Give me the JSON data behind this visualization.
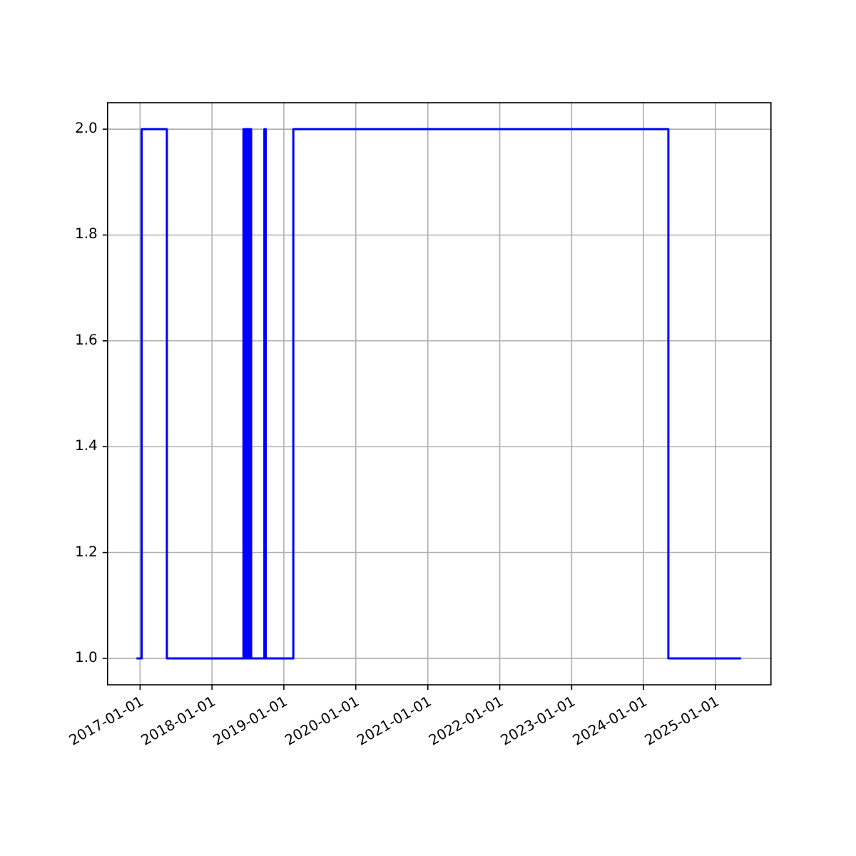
{
  "chart_data": {
    "type": "step",
    "x": [
      "2016-12-14",
      "2017-01-09",
      "2017-05-17",
      "2018-06-10",
      "2018-06-15",
      "2018-06-20",
      "2018-06-26",
      "2018-07-01",
      "2018-07-06",
      "2018-07-11",
      "2018-07-19",
      "2018-09-24",
      "2018-10-01",
      "2019-02-18",
      "2024-05-06",
      "2025-05-10"
    ],
    "series": [
      {
        "color": "#0000ff",
        "values": [
          1,
          2,
          1,
          2,
          1,
          2,
          1,
          2,
          1,
          2,
          1,
          2,
          1,
          2,
          1,
          1
        ]
      }
    ],
    "xlim": [
      "2016-07-20",
      "2025-10-09"
    ],
    "xticks": [
      {
        "value": "2017-01-01",
        "label": "2017-01-01"
      },
      {
        "value": "2018-01-01",
        "label": "2018-01-01"
      },
      {
        "value": "2019-01-01",
        "label": "2019-01-01"
      },
      {
        "value": "2020-01-01",
        "label": "2020-01-01"
      },
      {
        "value": "2021-01-01",
        "label": "2021-01-01"
      },
      {
        "value": "2022-01-01",
        "label": "2022-01-01"
      },
      {
        "value": "2023-01-01",
        "label": "2023-01-01"
      },
      {
        "value": "2024-01-01",
        "label": "2024-01-01"
      },
      {
        "value": "2025-01-01",
        "label": "2025-01-01"
      }
    ],
    "ylim": [
      0.95,
      2.05
    ],
    "yticks": [
      {
        "value": 1,
        "label": "1.0"
      },
      {
        "value": 1.2,
        "label": "1.2"
      },
      {
        "value": 1.4,
        "label": "1.4"
      },
      {
        "value": 1.6,
        "label": "1.6"
      },
      {
        "value": 1.8,
        "label": "1.8"
      },
      {
        "value": 2,
        "label": "2.0"
      }
    ],
    "grid": true
  }
}
